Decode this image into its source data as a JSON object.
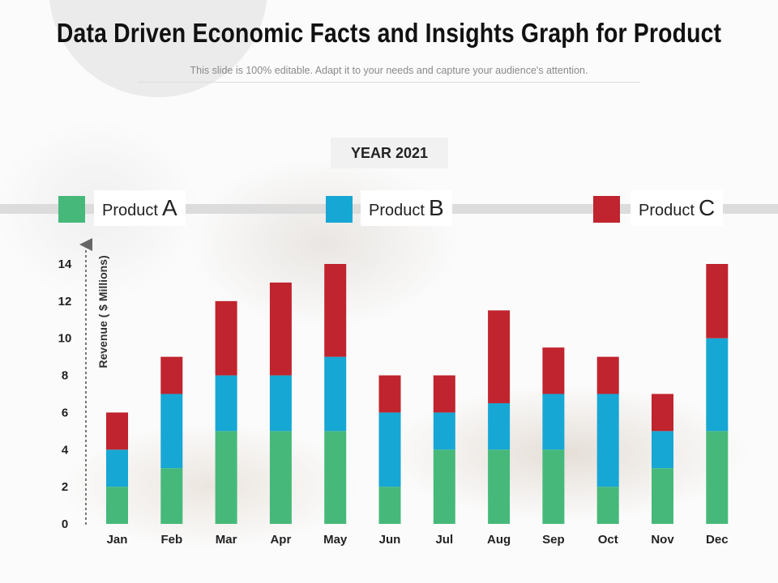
{
  "title": "Data Driven Economic Facts and Insights Graph for Product",
  "subtitle": "This slide is 100% editable. Adapt it to your needs and capture your audience's attention.",
  "year_label": "YEAR 2021",
  "legend": [
    {
      "name": "Product",
      "letter": "A",
      "color": "#46b97a"
    },
    {
      "name": "Product",
      "letter": "B",
      "color": "#17a7d4"
    },
    {
      "name": "Product",
      "letter": "C",
      "color": "#c0242e"
    }
  ],
  "chart_data": {
    "type": "bar",
    "stacked": true,
    "categories": [
      "Jan",
      "Feb",
      "Mar",
      "Apr",
      "May",
      "Jun",
      "Jul",
      "Aug",
      "Sep",
      "Oct",
      "Nov",
      "Dec"
    ],
    "series": [
      {
        "name": "Product A",
        "color": "#46b97a",
        "values": [
          2,
          3,
          5,
          5,
          5,
          2,
          4,
          4,
          4,
          2,
          3,
          5
        ]
      },
      {
        "name": "Product B",
        "color": "#17a7d4",
        "values": [
          2,
          4,
          3,
          3,
          4,
          4,
          2,
          2.5,
          3,
          5,
          2,
          5
        ]
      },
      {
        "name": "Product C",
        "color": "#c0242e",
        "values": [
          2,
          2,
          4,
          5,
          5,
          2,
          2,
          5,
          2.5,
          2,
          2,
          4
        ]
      }
    ],
    "ylabel": "Revenue ( $ Millions)",
    "ylim": [
      0,
      14
    ],
    "yticks": [
      0,
      2,
      4,
      6,
      8,
      10,
      12,
      14
    ],
    "grid": false
  }
}
